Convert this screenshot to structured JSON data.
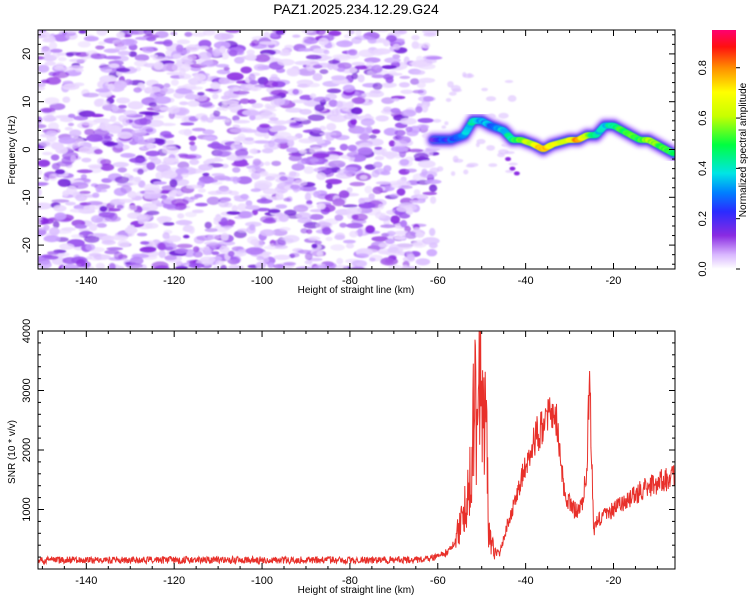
{
  "title": "PAZ1.2025.234.12.29.G24",
  "chart_data": [
    {
      "type": "heatmap",
      "name": "spectrogram",
      "xlabel": "Height of straight line (km)",
      "ylabel": "Frequency (Hz)",
      "xlim": [
        -151,
        -6
      ],
      "ylim": [
        -25,
        25
      ],
      "xticks": [
        -140,
        -120,
        -100,
        -80,
        -60,
        -40,
        -20
      ],
      "yticks": [
        -20,
        -10,
        0,
        10,
        20
      ],
      "noise_region_x": [
        -151,
        -62
      ],
      "signal_track": {
        "x": [
          -61,
          -57,
          -54,
          -52,
          -50,
          -48,
          -45,
          -43,
          -41,
          -38,
          -36,
          -34,
          -30,
          -28,
          -26,
          -24,
          -22,
          -20,
          -18,
          -16,
          -14,
          -12,
          -10,
          -8,
          -6
        ],
        "freq_hz": [
          2,
          2,
          3,
          6,
          6,
          5,
          4,
          2,
          2,
          1,
          0,
          1,
          2,
          2,
          3,
          3,
          5,
          5,
          4,
          3,
          2,
          2,
          1,
          0,
          -1
        ],
        "amplitude": [
          0.2,
          0.25,
          0.35,
          0.4,
          0.35,
          0.3,
          0.35,
          0.45,
          0.55,
          0.65,
          0.8,
          0.7,
          0.65,
          0.8,
          0.6,
          0.4,
          0.35,
          0.45,
          0.5,
          0.55,
          0.5,
          0.6,
          0.55,
          0.5,
          0.45
        ]
      },
      "colorbar": {
        "label": "Normalized spectral amplitude",
        "range": [
          0,
          0.95
        ],
        "ticks": [
          "0.0",
          "0.2",
          "0.4",
          "0.6",
          "0.8"
        ]
      }
    },
    {
      "type": "line",
      "name": "snr",
      "xlabel": "Height of straight line (km)",
      "ylabel": "SNR (10 * v/v)",
      "xlim": [
        -151,
        -6
      ],
      "ylim": [
        0,
        4000
      ],
      "xticks": [
        -140,
        -120,
        -100,
        -80,
        -60,
        -40,
        -20
      ],
      "yticks": [
        1000,
        2000,
        3000,
        4000
      ],
      "color": "#e8302a",
      "series": [
        {
          "name": "SNR",
          "x": [
            -151,
            -140,
            -120,
            -100,
            -80,
            -65,
            -60,
            -58,
            -56,
            -54,
            -53,
            -52,
            -51,
            -50.5,
            -50,
            -49.5,
            -49,
            -48.5,
            -48,
            -47,
            -46,
            -45,
            -44,
            -43,
            -42,
            -41,
            -40,
            -39,
            -38,
            -37,
            -36,
            -35,
            -34,
            -33,
            -32,
            -31,
            -30,
            -29,
            -28,
            -27,
            -26,
            -25.5,
            -25,
            -24.5,
            -24,
            -22,
            -20,
            -18,
            -16,
            -14,
            -12,
            -10,
            -8,
            -6
          ],
          "y": [
            150,
            150,
            150,
            150,
            150,
            150,
            200,
            280,
            450,
            800,
            1600,
            2500,
            2800,
            3800,
            2500,
            3500,
            2400,
            800,
            500,
            300,
            250,
            500,
            800,
            1000,
            1200,
            1500,
            1700,
            1900,
            2200,
            2300,
            2400,
            2500,
            2600,
            2500,
            1800,
            1200,
            1100,
            1000,
            1000,
            1150,
            1700,
            3300,
            2000,
            600,
            800,
            900,
            1000,
            1100,
            1200,
            1300,
            1400,
            1450,
            1500,
            1550
          ]
        }
      ]
    }
  ]
}
